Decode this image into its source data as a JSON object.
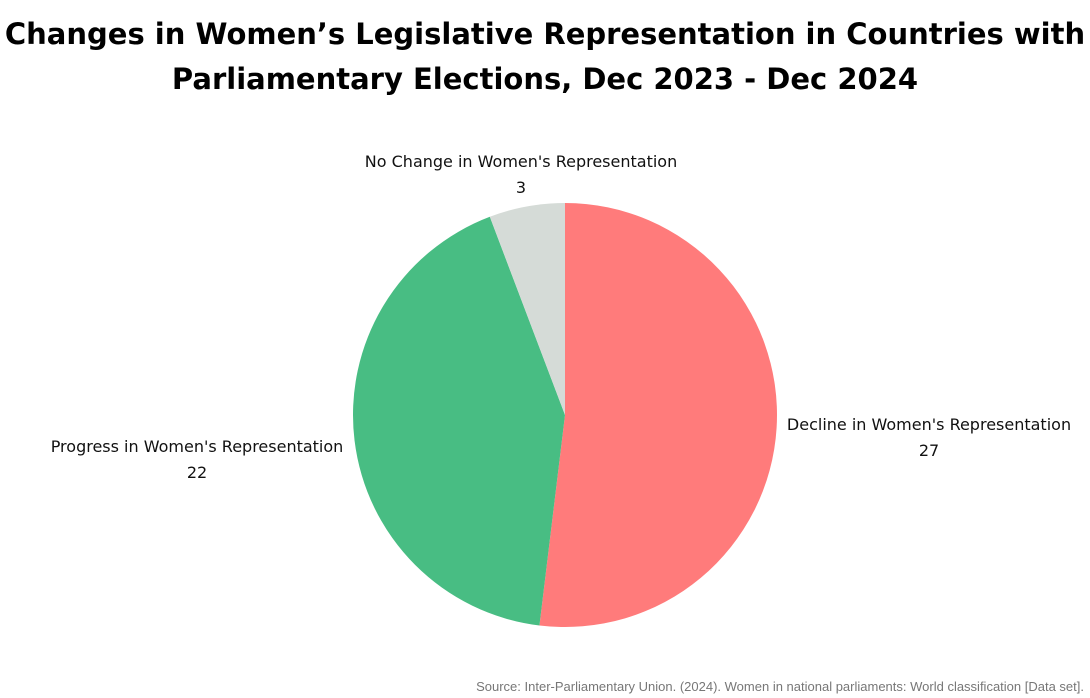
{
  "title_lines": [
    "Changes in Women’s Legislative Representation in Countries with",
    "Parliamentary Elections, Dec 2023 - Dec 2024"
  ],
  "source": "Source: Inter-Parliamentary Union. (2024). Women in national parliaments: World classification [Data set].",
  "chart_data": {
    "type": "pie",
    "title": "Changes in Women’s Legislative Representation in Countries with Parliamentary Elections, Dec 2023 - Dec 2024",
    "slices": [
      {
        "label": "Decline in Women's Representation",
        "value": 27,
        "color": "#FF7B7B"
      },
      {
        "label": "Progress in Women's Representation",
        "value": 22,
        "color": "#48BD83"
      },
      {
        "label": "No Change in Women's Representation",
        "value": 3,
        "color": "#D5DBD7"
      }
    ],
    "start": "top",
    "direction": "clockwise",
    "legend": "none"
  }
}
